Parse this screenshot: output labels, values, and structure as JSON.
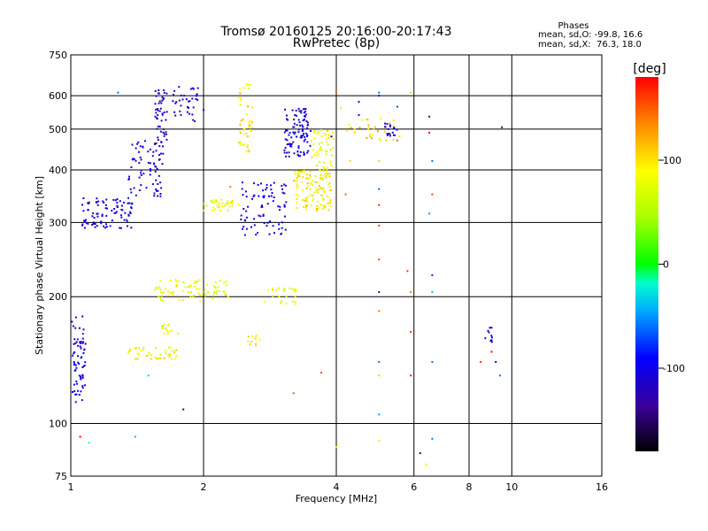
{
  "chart_data": {
    "type": "scatter",
    "title": "Tromsø 20160125 20:16:00-20:17:43",
    "subtitle": "RwPretec (8p)",
    "xlabel": "Frequency [MHz]",
    "ylabel": "Stationary phase Virtual Height [km]",
    "xscale": "log",
    "yscale": "log",
    "xlim": [
      1,
      16
    ],
    "ylim": [
      75,
      750
    ],
    "xticks": [
      "1",
      "2",
      "4",
      "6",
      "8",
      "10",
      "16"
    ],
    "yticks": [
      "75",
      "100",
      "200",
      "300",
      "400",
      "500",
      "600",
      "750"
    ],
    "x_gridlines": [
      2,
      4,
      6,
      8,
      10
    ],
    "y_gridlines": [
      100,
      200,
      300,
      400,
      500,
      600
    ],
    "stats": {
      "title": "Phases",
      "line1": "mean, sd,O: -99.8, 16.6",
      "line2": "mean, sd,X:  76.3, 18.0"
    },
    "colorbar": {
      "label": "[deg]",
      "range": [
        -180,
        180
      ],
      "ticks": [
        "100",
        "0",
        "-100"
      ],
      "tick_values": [
        100,
        0,
        -100
      ]
    },
    "clusters": [
      {
        "xr": [
          1.0,
          1.08
        ],
        "yr": [
          112,
          180
        ],
        "phase": -105,
        "n": 70
      },
      {
        "xr": [
          1.06,
          1.38
        ],
        "yr": [
          290,
          345
        ],
        "phase": -105,
        "n": 90
      },
      {
        "xr": [
          1.35,
          1.62
        ],
        "yr": [
          345,
          470
        ],
        "phase": -110,
        "n": 70
      },
      {
        "xr": [
          1.55,
          1.66
        ],
        "yr": [
          460,
          640
        ],
        "phase": -115,
        "n": 50
      },
      {
        "xr": [
          1.7,
          1.95
        ],
        "yr": [
          520,
          630
        ],
        "phase": -115,
        "n": 35
      },
      {
        "xr": [
          1.55,
          2.3
        ],
        "yr": [
          195,
          220
        ],
        "phase": 82,
        "n": 80
      },
      {
        "xr": [
          1.35,
          1.75
        ],
        "yr": [
          142,
          152
        ],
        "phase": 88,
        "n": 45
      },
      {
        "xr": [
          1.6,
          1.75
        ],
        "yr": [
          162,
          172
        ],
        "phase": 85,
        "n": 15
      },
      {
        "xr": [
          2.0,
          2.4
        ],
        "yr": [
          320,
          340
        ],
        "phase": 78,
        "n": 40
      },
      {
        "xr": [
          2.4,
          2.58
        ],
        "yr": [
          440,
          650
        ],
        "phase": 98,
        "n": 45
      },
      {
        "xr": [
          2.42,
          3.1
        ],
        "yr": [
          280,
          375
        ],
        "phase": -105,
        "n": 80
      },
      {
        "xr": [
          3.05,
          3.5
        ],
        "yr": [
          430,
          560
        ],
        "phase": -110,
        "n": 100
      },
      {
        "xr": [
          3.2,
          3.9
        ],
        "yr": [
          320,
          400
        ],
        "phase": 92,
        "n": 130
      },
      {
        "xr": [
          3.5,
          3.95
        ],
        "yr": [
          400,
          500
        ],
        "phase": 82,
        "n": 50
      },
      {
        "xr": [
          2.75,
          3.25
        ],
        "yr": [
          190,
          210
        ],
        "phase": 80,
        "n": 25
      },
      {
        "xr": [
          2.5,
          2.7
        ],
        "yr": [
          153,
          162
        ],
        "phase": 92,
        "n": 12
      },
      {
        "xr": [
          4.2,
          5.6
        ],
        "yr": [
          470,
          530
        ],
        "phase": 105,
        "n": 30
      },
      {
        "xr": [
          5.1,
          5.5
        ],
        "yr": [
          480,
          520
        ],
        "phase": -110,
        "n": 20
      },
      {
        "xr": [
          8.7,
          9.1
        ],
        "yr": [
          150,
          170
        ],
        "phase": -115,
        "n": 10
      }
    ],
    "points": [
      [
        1.28,
        610,
        -60
      ],
      [
        1.05,
        93,
        180
      ],
      [
        1.1,
        90,
        -20
      ],
      [
        1.4,
        93,
        -40
      ],
      [
        1.5,
        130,
        -30
      ],
      [
        1.8,
        108,
        -150
      ],
      [
        2.0,
        555,
        -100
      ],
      [
        3.2,
        118,
        150
      ],
      [
        3.7,
        132,
        160
      ],
      [
        4.0,
        88,
        100
      ],
      [
        4.0,
        612,
        150
      ],
      [
        4.1,
        560,
        100
      ],
      [
        4.3,
        420,
        110
      ],
      [
        4.2,
        350,
        150
      ],
      [
        4.5,
        580,
        -100
      ],
      [
        4.5,
        540,
        -90
      ],
      [
        5.0,
        610,
        -60
      ],
      [
        5.0,
        600,
        -100
      ],
      [
        5.0,
        360,
        -60
      ],
      [
        5.0,
        330,
        170
      ],
      [
        5.0,
        295,
        160
      ],
      [
        5.0,
        245,
        160
      ],
      [
        5.0,
        205,
        -140
      ],
      [
        5.0,
        185,
        140
      ],
      [
        5.0,
        140,
        -60
      ],
      [
        5.0,
        130,
        110
      ],
      [
        5.0,
        105,
        -50
      ],
      [
        5.0,
        91,
        60
      ],
      [
        5.0,
        420,
        40
      ],
      [
        5.5,
        470,
        150
      ],
      [
        5.5,
        565,
        -70
      ],
      [
        5.8,
        230,
        160
      ],
      [
        5.9,
        205,
        140
      ],
      [
        5.9,
        165,
        160
      ],
      [
        5.9,
        130,
        170
      ],
      [
        5.9,
        610,
        110
      ],
      [
        6.2,
        85,
        -150
      ],
      [
        6.4,
        80,
        100
      ],
      [
        6.5,
        535,
        -140
      ],
      [
        6.5,
        490,
        180
      ],
      [
        6.6,
        420,
        -60
      ],
      [
        6.6,
        350,
        160
      ],
      [
        6.5,
        315,
        -50
      ],
      [
        6.6,
        225,
        -80
      ],
      [
        6.6,
        205,
        -40
      ],
      [
        6.6,
        140,
        -60
      ],
      [
        6.6,
        92,
        -60
      ],
      [
        8.5,
        140,
        160
      ],
      [
        9.0,
        148,
        180
      ],
      [
        9.2,
        140,
        -100
      ],
      [
        9.4,
        130,
        -60
      ],
      [
        9.5,
        505,
        -140
      ],
      [
        3.9,
        480,
        -150
      ],
      [
        4.4,
        490,
        100
      ],
      [
        2.3,
        365,
        140
      ]
    ]
  }
}
